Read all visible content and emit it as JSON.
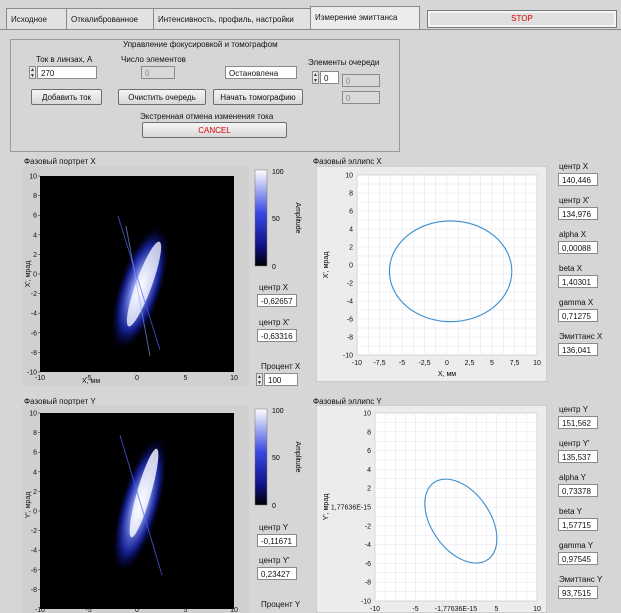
{
  "tabs": [
    "Исходное",
    "Откалиброванное",
    "Интенсивность, профиль, настройки",
    "Измерение эмиттанса"
  ],
  "stop_label": "STOP",
  "focus": {
    "group_title": "Управление фокусировкой и томографом",
    "current_label": "Ток в линзах, А",
    "current_value": "270",
    "count_label": "Число элементов",
    "count_value": "0",
    "status_value": "Остановлена",
    "queue_label": "Элементы очереди",
    "queue_index": "0",
    "queue_value_1": "0",
    "queue_value_2": "0",
    "add_button": "Добавить ток",
    "clear_button": "Очистить очередь",
    "start_button": "Начать томографию",
    "emergency_label": "Экстренная отмена изменения тока",
    "cancel_button": "CANCEL"
  },
  "portraitX": {
    "title": "Фазовый портрет X",
    "xlabel": "X, мм",
    "ylabel": "X', мрад",
    "xticks": [
      "-10",
      "-5",
      "0",
      "5",
      "10"
    ],
    "yticks": [
      "10",
      "8",
      "6",
      "4",
      "2",
      "0",
      "-2",
      "-4",
      "-6",
      "-8",
      "-10"
    ],
    "scale_label": "Amplitude",
    "scale_ticks": [
      "100",
      "50",
      "0"
    ],
    "center_x_label": "центр X",
    "center_x_value": "-0,62657",
    "center_xp_label": "центр X'",
    "center_xp_value": "-0,63316",
    "percent_label": "Процент X",
    "percent_value": "100"
  },
  "portraitY": {
    "title": "Фазовый портрет Y",
    "ylabel": "Y', мрад",
    "xticks": [
      "-10",
      "-5",
      "0",
      "5",
      "10"
    ],
    "yticks": [
      "10",
      "8",
      "6",
      "4",
      "2",
      "0",
      "-2",
      "-4",
      "-6",
      "-8"
    ],
    "scale_label": "Amplitude",
    "scale_ticks": [
      "100",
      "50",
      "0"
    ],
    "center_y_label": "центр Y",
    "center_y_value": "-0,11671",
    "center_yp_label": "центр Y'",
    "center_yp_value": "0,23427",
    "percent_label": "Процент Y"
  },
  "ellipseX": {
    "title": "Фазовый эллипс X",
    "xlabel": "X, мм",
    "ylabel": "X', мрад",
    "xticks": [
      "-10",
      "-7,5",
      "-5",
      "-2,5",
      "0",
      "2,5",
      "5",
      "7,5",
      "10"
    ],
    "yticks": [
      "10",
      "8",
      "6",
      "4",
      "2",
      "0",
      "-2",
      "-4",
      "-6",
      "-8",
      "-10"
    ],
    "curve_color": "#3a8fd0"
  },
  "ellipseY": {
    "title": "Фазовый эллипс Y",
    "ylabel": "Y', мрад",
    "xticks": [
      "-10",
      "-5",
      "-1,77636E-15",
      "5",
      "10"
    ],
    "yticks": [
      "10",
      "8",
      "6",
      "4",
      "2",
      "1,77636E-15",
      "-2",
      "-4",
      "-6",
      "-8",
      "-10"
    ],
    "curve_color": "#3a8fd0"
  },
  "paramsX": [
    {
      "label": "центр X",
      "value": "140,446"
    },
    {
      "label": "центр X'",
      "value": "134,976"
    },
    {
      "label": "alpha X",
      "value": "0,00088"
    },
    {
      "label": "beta X",
      "value": "1,40301"
    },
    {
      "label": "gamma X",
      "value": "0,71275"
    },
    {
      "label": "Эмиттанс X",
      "value": "136,041"
    }
  ],
  "paramsY": [
    {
      "label": "центр Y",
      "value": "151,562"
    },
    {
      "label": "центр Y'",
      "value": "135,537"
    },
    {
      "label": "alpha Y",
      "value": "0,73378"
    },
    {
      "label": "beta Y",
      "value": "1,57715"
    },
    {
      "label": "gamma Y",
      "value": "0,97545"
    },
    {
      "label": "Эмиттанс Y",
      "value": "93,7515"
    }
  ]
}
